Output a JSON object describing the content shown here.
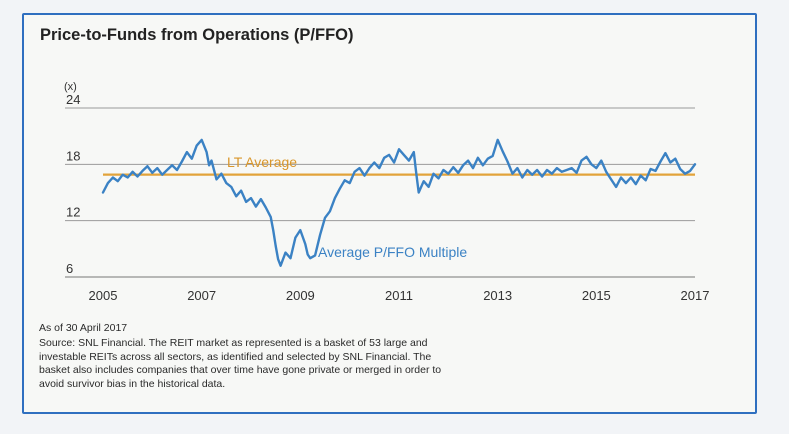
{
  "chart_data": {
    "type": "line",
    "title": "Price-to-Funds from Operations (P/FFO)",
    "ylabel": "(x)",
    "xlabel": "",
    "ylim": [
      6,
      24
    ],
    "xlim": [
      2005,
      2017
    ],
    "yticks": [
      6,
      12,
      18,
      24
    ],
    "xticks": [
      2005,
      2007,
      2009,
      2011,
      2013,
      2015,
      2017
    ],
    "grid": true,
    "reference_line": {
      "label": "LT Average",
      "value": 16.9,
      "color": "#e2a33a"
    },
    "series": [
      {
        "name": "Average P/FFO Multiple",
        "color": "#3b82c4",
        "points": [
          [
            2005.0,
            15.0
          ],
          [
            2005.1,
            16.0
          ],
          [
            2005.2,
            16.6
          ],
          [
            2005.3,
            16.2
          ],
          [
            2005.4,
            16.9
          ],
          [
            2005.5,
            16.6
          ],
          [
            2005.6,
            17.2
          ],
          [
            2005.7,
            16.7
          ],
          [
            2005.8,
            17.3
          ],
          [
            2005.9,
            17.8
          ],
          [
            2006.0,
            17.1
          ],
          [
            2006.1,
            17.6
          ],
          [
            2006.2,
            16.9
          ],
          [
            2006.3,
            17.4
          ],
          [
            2006.4,
            17.9
          ],
          [
            2006.5,
            17.4
          ],
          [
            2006.6,
            18.3
          ],
          [
            2006.7,
            19.3
          ],
          [
            2006.8,
            18.6
          ],
          [
            2006.9,
            20.0
          ],
          [
            2007.0,
            20.6
          ],
          [
            2007.1,
            19.3
          ],
          [
            2007.15,
            17.9
          ],
          [
            2007.2,
            18.4
          ],
          [
            2007.3,
            16.4
          ],
          [
            2007.4,
            17.0
          ],
          [
            2007.5,
            16.0
          ],
          [
            2007.6,
            15.6
          ],
          [
            2007.7,
            14.6
          ],
          [
            2007.8,
            15.2
          ],
          [
            2007.9,
            14.0
          ],
          [
            2008.0,
            14.4
          ],
          [
            2008.1,
            13.5
          ],
          [
            2008.2,
            14.3
          ],
          [
            2008.3,
            13.4
          ],
          [
            2008.4,
            12.4
          ],
          [
            2008.45,
            11.0
          ],
          [
            2008.5,
            9.3
          ],
          [
            2008.55,
            7.9
          ],
          [
            2008.6,
            7.2
          ],
          [
            2008.7,
            8.6
          ],
          [
            2008.8,
            8.0
          ],
          [
            2008.9,
            10.2
          ],
          [
            2009.0,
            11.0
          ],
          [
            2009.1,
            9.5
          ],
          [
            2009.15,
            8.4
          ],
          [
            2009.2,
            8.0
          ],
          [
            2009.3,
            8.3
          ],
          [
            2009.4,
            10.5
          ],
          [
            2009.5,
            12.3
          ],
          [
            2009.6,
            13.0
          ],
          [
            2009.7,
            14.4
          ],
          [
            2009.8,
            15.4
          ],
          [
            2009.9,
            16.3
          ],
          [
            2010.0,
            16.0
          ],
          [
            2010.1,
            17.2
          ],
          [
            2010.2,
            17.6
          ],
          [
            2010.3,
            16.8
          ],
          [
            2010.4,
            17.6
          ],
          [
            2010.5,
            18.2
          ],
          [
            2010.6,
            17.6
          ],
          [
            2010.7,
            18.7
          ],
          [
            2010.8,
            19.0
          ],
          [
            2010.9,
            18.2
          ],
          [
            2011.0,
            19.6
          ],
          [
            2011.1,
            19.0
          ],
          [
            2011.2,
            18.4
          ],
          [
            2011.3,
            19.3
          ],
          [
            2011.35,
            17.0
          ],
          [
            2011.4,
            15.0
          ],
          [
            2011.5,
            16.2
          ],
          [
            2011.6,
            15.6
          ],
          [
            2011.7,
            17.0
          ],
          [
            2011.8,
            16.5
          ],
          [
            2011.9,
            17.4
          ],
          [
            2012.0,
            17.0
          ],
          [
            2012.1,
            17.7
          ],
          [
            2012.2,
            17.1
          ],
          [
            2012.3,
            17.9
          ],
          [
            2012.4,
            18.4
          ],
          [
            2012.5,
            17.6
          ],
          [
            2012.6,
            18.7
          ],
          [
            2012.7,
            17.9
          ],
          [
            2012.8,
            18.6
          ],
          [
            2012.9,
            18.9
          ],
          [
            2013.0,
            20.6
          ],
          [
            2013.1,
            19.4
          ],
          [
            2013.2,
            18.3
          ],
          [
            2013.3,
            17.0
          ],
          [
            2013.4,
            17.6
          ],
          [
            2013.5,
            16.6
          ],
          [
            2013.6,
            17.4
          ],
          [
            2013.7,
            16.9
          ],
          [
            2013.8,
            17.4
          ],
          [
            2013.9,
            16.7
          ],
          [
            2014.0,
            17.4
          ],
          [
            2014.1,
            17.0
          ],
          [
            2014.2,
            17.6
          ],
          [
            2014.3,
            17.2
          ],
          [
            2014.4,
            17.4
          ],
          [
            2014.5,
            17.6
          ],
          [
            2014.6,
            17.1
          ],
          [
            2014.7,
            18.4
          ],
          [
            2014.8,
            18.8
          ],
          [
            2014.9,
            18.0
          ],
          [
            2015.0,
            17.6
          ],
          [
            2015.1,
            18.4
          ],
          [
            2015.2,
            17.2
          ],
          [
            2015.3,
            16.4
          ],
          [
            2015.4,
            15.6
          ],
          [
            2015.5,
            16.6
          ],
          [
            2015.6,
            16.0
          ],
          [
            2015.7,
            16.6
          ],
          [
            2015.8,
            15.9
          ],
          [
            2015.9,
            16.8
          ],
          [
            2016.0,
            16.3
          ],
          [
            2016.1,
            17.5
          ],
          [
            2016.2,
            17.3
          ],
          [
            2016.3,
            18.3
          ],
          [
            2016.4,
            19.2
          ],
          [
            2016.5,
            18.2
          ],
          [
            2016.6,
            18.6
          ],
          [
            2016.7,
            17.5
          ],
          [
            2016.8,
            17.0
          ],
          [
            2016.9,
            17.3
          ],
          [
            2017.0,
            18.0
          ]
        ]
      }
    ],
    "annotations": [
      "LT Average",
      "Average P/FFO Multiple"
    ]
  },
  "notes": {
    "as_of": "As of 30 April 2017",
    "source_lines": [
      "Source: SNL Financial. The REIT market as represented is a basket of 53 large and",
      "investable REITs across all sectors, as identified and selected by SNL Financial. The",
      "basket also includes companies that over time have gone private or merged in order to",
      "avoid survivor bias in the historical data."
    ]
  }
}
